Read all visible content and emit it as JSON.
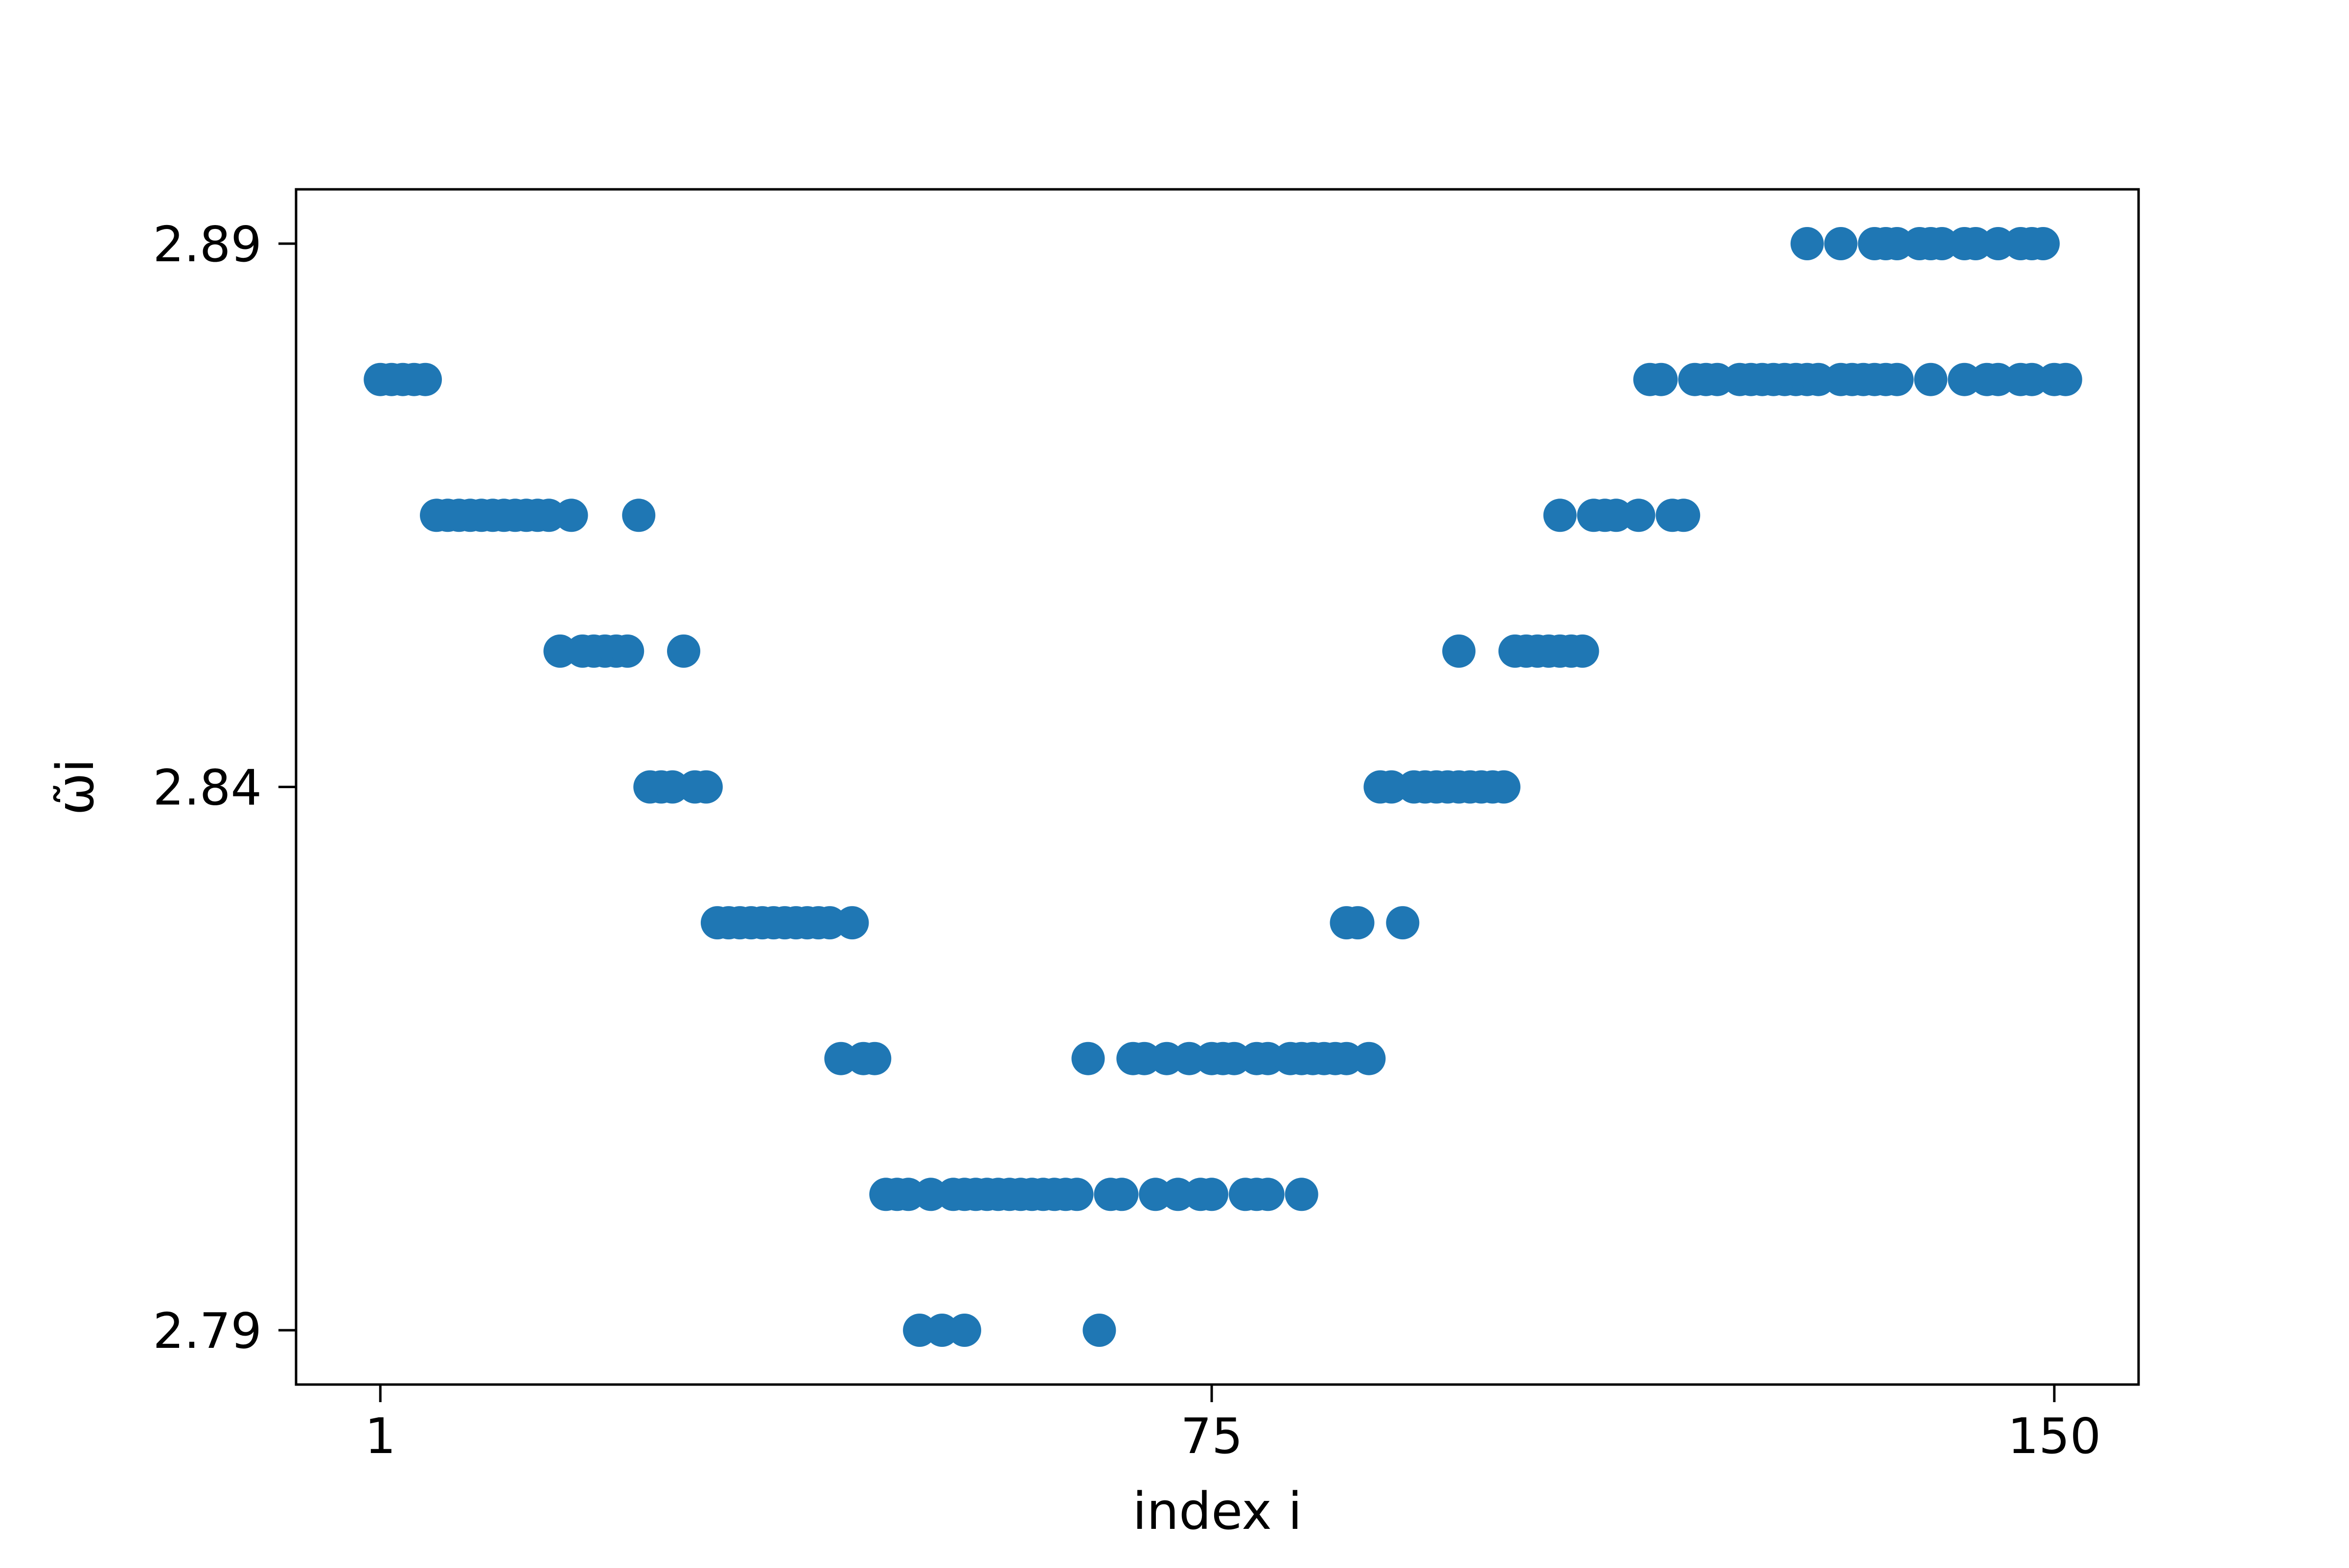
{
  "chart_data": {
    "type": "scatter",
    "title": "",
    "xlabel": "index i",
    "ylabel": "ω̃i",
    "xlim": [
      -6.5,
      157.5
    ],
    "ylim": [
      2.785,
      2.895
    ],
    "x_ticks": [
      {
        "value": 1,
        "label": "1"
      },
      {
        "value": 75,
        "label": "75"
      },
      {
        "value": 150,
        "label": "150"
      }
    ],
    "y_ticks": [
      {
        "value": 2.79,
        "label": "2.79"
      },
      {
        "value": 2.84,
        "label": "2.84"
      },
      {
        "value": 2.89,
        "label": "2.89"
      }
    ],
    "grid": false,
    "legend": null,
    "marker_color": "#1f77b4",
    "series": [
      {
        "points": [
          [
            1,
            2.8775
          ],
          [
            2,
            2.8775
          ],
          [
            3,
            2.8775
          ],
          [
            4,
            2.8775
          ],
          [
            5,
            2.8775
          ],
          [
            6,
            2.865
          ],
          [
            7,
            2.865
          ],
          [
            8,
            2.865
          ],
          [
            9,
            2.865
          ],
          [
            10,
            2.865
          ],
          [
            11,
            2.865
          ],
          [
            12,
            2.865
          ],
          [
            13,
            2.865
          ],
          [
            14,
            2.865
          ],
          [
            15,
            2.865
          ],
          [
            16,
            2.865
          ],
          [
            18,
            2.865
          ],
          [
            24,
            2.865
          ],
          [
            17,
            2.8525
          ],
          [
            19,
            2.8525
          ],
          [
            20,
            2.8525
          ],
          [
            21,
            2.8525
          ],
          [
            22,
            2.8525
          ],
          [
            23,
            2.8525
          ],
          [
            28,
            2.8525
          ],
          [
            25,
            2.84
          ],
          [
            26,
            2.84
          ],
          [
            27,
            2.84
          ],
          [
            29,
            2.84
          ],
          [
            30,
            2.84
          ],
          [
            31,
            2.8275
          ],
          [
            32,
            2.8275
          ],
          [
            33,
            2.8275
          ],
          [
            34,
            2.8275
          ],
          [
            35,
            2.8275
          ],
          [
            36,
            2.8275
          ],
          [
            37,
            2.8275
          ],
          [
            38,
            2.8275
          ],
          [
            39,
            2.8275
          ],
          [
            40,
            2.8275
          ],
          [
            41,
            2.8275
          ],
          [
            43,
            2.8275
          ],
          [
            42,
            2.815
          ],
          [
            44,
            2.815
          ],
          [
            45,
            2.815
          ],
          [
            46,
            2.8025
          ],
          [
            47,
            2.8025
          ],
          [
            48,
            2.8025
          ],
          [
            50,
            2.8025
          ],
          [
            52,
            2.8025
          ],
          [
            53,
            2.8025
          ],
          [
            54,
            2.8025
          ],
          [
            55,
            2.8025
          ],
          [
            56,
            2.8025
          ],
          [
            57,
            2.8025
          ],
          [
            58,
            2.8025
          ],
          [
            59,
            2.8025
          ],
          [
            60,
            2.8025
          ],
          [
            61,
            2.8025
          ],
          [
            62,
            2.8025
          ],
          [
            63,
            2.8025
          ],
          [
            66,
            2.8025
          ],
          [
            67,
            2.8025
          ],
          [
            70,
            2.8025
          ],
          [
            72,
            2.8025
          ],
          [
            74,
            2.8025
          ],
          [
            75,
            2.8025
          ],
          [
            78,
            2.8025
          ],
          [
            79,
            2.8025
          ],
          [
            80,
            2.8025
          ],
          [
            83,
            2.8025
          ],
          [
            49,
            2.79
          ],
          [
            51,
            2.79
          ],
          [
            53,
            2.79
          ],
          [
            65,
            2.79
          ],
          [
            64,
            2.815
          ],
          [
            68,
            2.815
          ],
          [
            69,
            2.815
          ],
          [
            71,
            2.815
          ],
          [
            73,
            2.815
          ],
          [
            75,
            2.815
          ],
          [
            76,
            2.815
          ],
          [
            77,
            2.815
          ],
          [
            79,
            2.815
          ],
          [
            80,
            2.815
          ],
          [
            82,
            2.815
          ],
          [
            83,
            2.815
          ],
          [
            84,
            2.815
          ],
          [
            85,
            2.815
          ],
          [
            86,
            2.815
          ],
          [
            87,
            2.815
          ],
          [
            89,
            2.815
          ],
          [
            87,
            2.8275
          ],
          [
            88,
            2.8275
          ],
          [
            92,
            2.8275
          ],
          [
            90,
            2.84
          ],
          [
            91,
            2.84
          ],
          [
            93,
            2.84
          ],
          [
            94,
            2.84
          ],
          [
            95,
            2.84
          ],
          [
            96,
            2.84
          ],
          [
            97,
            2.84
          ],
          [
            98,
            2.84
          ],
          [
            99,
            2.84
          ],
          [
            100,
            2.84
          ],
          [
            101,
            2.84
          ],
          [
            97,
            2.8525
          ],
          [
            102,
            2.8525
          ],
          [
            103,
            2.8525
          ],
          [
            104,
            2.8525
          ],
          [
            105,
            2.8525
          ],
          [
            106,
            2.8525
          ],
          [
            107,
            2.8525
          ],
          [
            108,
            2.8525
          ],
          [
            106,
            2.865
          ],
          [
            109,
            2.865
          ],
          [
            110,
            2.865
          ],
          [
            111,
            2.865
          ],
          [
            113,
            2.865
          ],
          [
            116,
            2.865
          ],
          [
            117,
            2.865
          ],
          [
            114,
            2.8775
          ],
          [
            115,
            2.8775
          ],
          [
            118,
            2.8775
          ],
          [
            119,
            2.8775
          ],
          [
            120,
            2.8775
          ],
          [
            122,
            2.8775
          ],
          [
            123,
            2.8775
          ],
          [
            124,
            2.8775
          ],
          [
            125,
            2.8775
          ],
          [
            126,
            2.8775
          ],
          [
            127,
            2.8775
          ],
          [
            128,
            2.8775
          ],
          [
            129,
            2.8775
          ],
          [
            131,
            2.8775
          ],
          [
            132,
            2.8775
          ],
          [
            133,
            2.8775
          ],
          [
            134,
            2.8775
          ],
          [
            135,
            2.8775
          ],
          [
            136,
            2.8775
          ],
          [
            139,
            2.8775
          ],
          [
            142,
            2.8775
          ],
          [
            144,
            2.8775
          ],
          [
            145,
            2.8775
          ],
          [
            147,
            2.8775
          ],
          [
            148,
            2.8775
          ],
          [
            150,
            2.8775
          ],
          [
            151,
            2.8775
          ],
          [
            128,
            2.89
          ],
          [
            131,
            2.89
          ],
          [
            134,
            2.89
          ],
          [
            135,
            2.89
          ],
          [
            136,
            2.89
          ],
          [
            138,
            2.89
          ],
          [
            139,
            2.89
          ],
          [
            140,
            2.89
          ],
          [
            142,
            2.89
          ],
          [
            143,
            2.89
          ],
          [
            145,
            2.89
          ],
          [
            147,
            2.89
          ],
          [
            148,
            2.89
          ],
          [
            149,
            2.89
          ]
        ]
      }
    ]
  }
}
